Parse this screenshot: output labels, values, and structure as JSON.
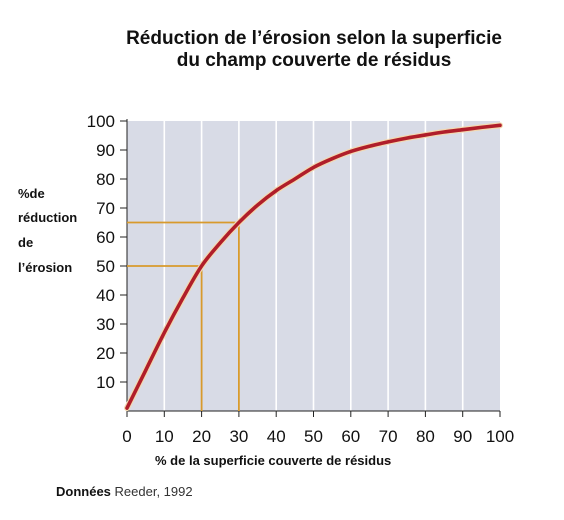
{
  "chart_data": {
    "type": "line",
    "title_lines": [
      "Réduction de l’érosion selon la superficie",
      "du champ couverte de résidus"
    ],
    "ylabel_lines": [
      "%de",
      "réduction",
      "de",
      "l’érosion"
    ],
    "xlabel": "% de la superficie couverte de résidus",
    "xlim": [
      0,
      100
    ],
    "ylim": [
      0,
      100
    ],
    "x_ticks": [
      "0",
      "10",
      "20",
      "30",
      "40",
      "50",
      "60",
      "70",
      "80",
      "90",
      "100"
    ],
    "y_ticks": [
      "10",
      "20",
      "30",
      "40",
      "50",
      "60",
      "70",
      "80",
      "90",
      "100"
    ],
    "grid": "vertical",
    "series": [
      {
        "color": "#b01e2a",
        "x": [
          0,
          5,
          10,
          15,
          20,
          25,
          30,
          35,
          40,
          45,
          50,
          55,
          60,
          65,
          70,
          75,
          80,
          85,
          90,
          95,
          100
        ],
        "y": [
          1,
          14,
          27,
          39,
          50,
          58,
          65,
          71,
          76,
          80,
          84,
          87,
          89.5,
          91.3,
          92.8,
          94.1,
          95.2,
          96.2,
          97,
          97.8,
          98.5
        ]
      }
    ],
    "reference_lines": [
      {
        "x": 20,
        "y": 50
      },
      {
        "x": 30,
        "y": 65
      }
    ],
    "colors": {
      "plot_background": "#d8dbe6",
      "grid": "#ffffff",
      "curve": "#b01e2a",
      "reference": "#d89a2c"
    }
  },
  "source": {
    "label": "Données",
    "reference": "Reeder, 1992"
  }
}
